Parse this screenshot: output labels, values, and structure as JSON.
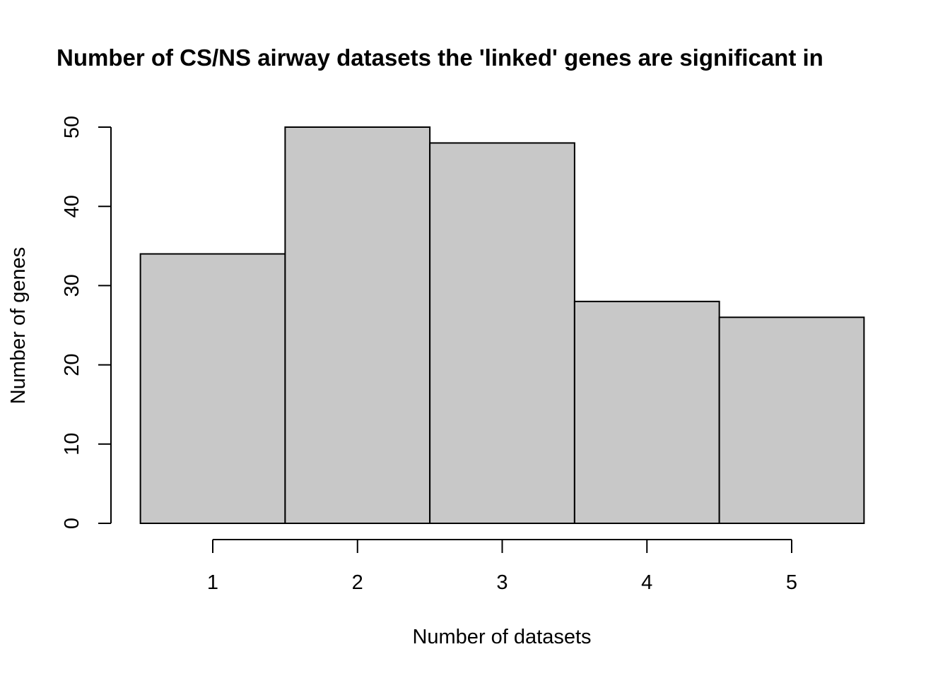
{
  "chart_data": {
    "type": "bar",
    "title": "Number of CS/NS airway datasets the 'linked' genes are significant in",
    "xlabel": "Number of datasets",
    "ylabel": "Number of genes",
    "categories": [
      "1",
      "2",
      "3",
      "4",
      "5"
    ],
    "values": [
      34,
      50,
      48,
      28,
      26
    ],
    "ylim": [
      0,
      50
    ],
    "yticks": [
      0,
      10,
      20,
      30,
      40,
      50
    ],
    "grid": false,
    "legend": "none",
    "bar_color": "#c8c8c8",
    "edge_color": "#000000"
  }
}
